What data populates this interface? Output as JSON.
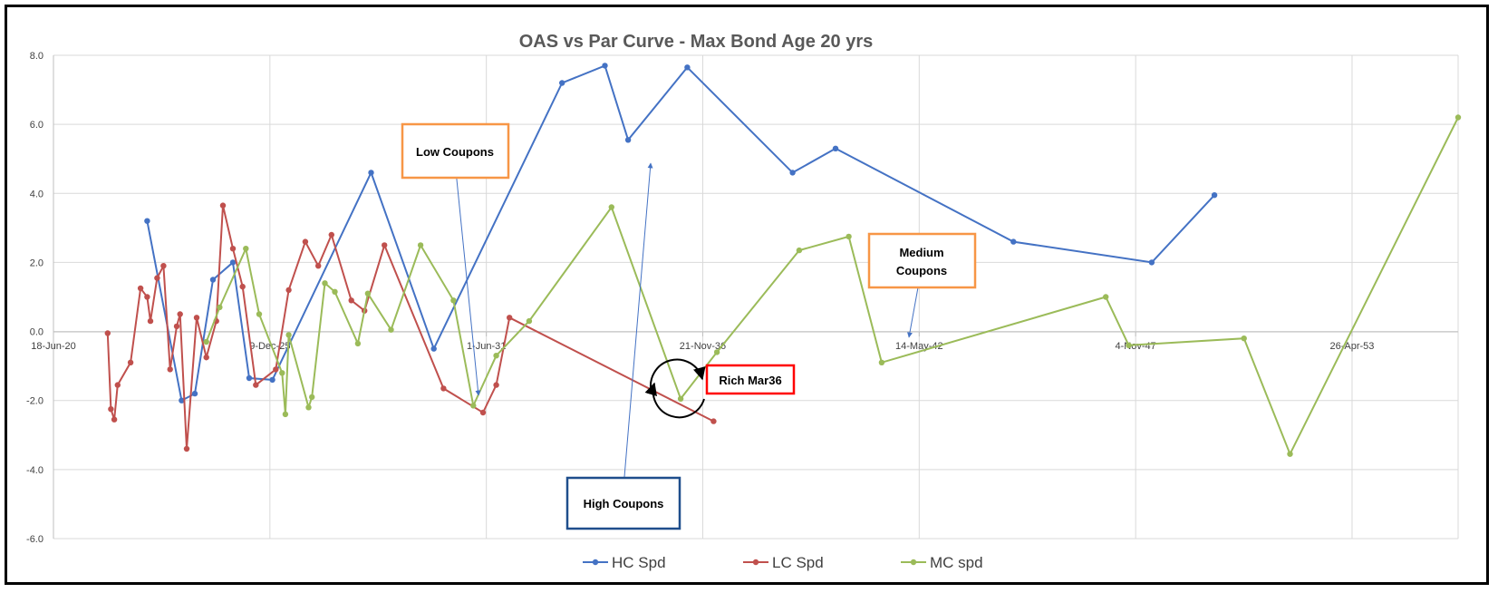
{
  "chart_data": {
    "type": "line",
    "title": "OAS vs Par Curve - Max Bond Age 20 yrs",
    "xlabel": "",
    "ylabel": "",
    "x_axis": {
      "type": "date",
      "ticks": [
        "18-Jun-20",
        "9-Dec-25",
        "1-Jun-31",
        "21-Nov-36",
        "14-May-42",
        "4-Nov-47",
        "26-Apr-53"
      ],
      "range": [
        "2020-06-18",
        "2056-01-01"
      ]
    },
    "y_axis": {
      "ticks": [
        "8.0",
        "6.0",
        "4.0",
        "2.0",
        "0.0",
        "-2.0",
        "-4.0",
        "-6.0"
      ],
      "ylim": [
        -6,
        8
      ]
    },
    "grid": true,
    "legend_position": "bottom",
    "series": [
      {
        "name": "HC Spd",
        "color": "#4472C4",
        "points": [
          [
            "2022-11-01",
            3.2
          ],
          [
            "2023-09-15",
            -2.0
          ],
          [
            "2024-01-15",
            -1.8
          ],
          [
            "2024-07-01",
            1.5
          ],
          [
            "2025-01-01",
            2.0
          ],
          [
            "2025-06-01",
            -1.35
          ],
          [
            "2026-01-01",
            -1.4
          ],
          [
            "2028-07-01",
            4.6
          ],
          [
            "2030-02-01",
            -0.5
          ],
          [
            "2033-05-01",
            7.2
          ],
          [
            "2034-06-01",
            7.7
          ],
          [
            "2035-01-01",
            5.55
          ],
          [
            "2036-07-01",
            7.65
          ],
          [
            "2039-03-01",
            4.6
          ],
          [
            "2040-04-01",
            5.3
          ],
          [
            "2044-10-01",
            2.6
          ],
          [
            "2048-04-01",
            2.0
          ],
          [
            "2049-11-01",
            3.95
          ]
        ]
      },
      {
        "name": "LC Spd",
        "color": "#C0504D",
        "points": [
          [
            "2021-11-01",
            -0.05
          ],
          [
            "2021-12-01",
            -2.25
          ],
          [
            "2022-01-01",
            -2.55
          ],
          [
            "2022-02-01",
            -1.55
          ],
          [
            "2022-06-01",
            -0.9
          ],
          [
            "2022-09-01",
            1.25
          ],
          [
            "2022-11-01",
            1.0
          ],
          [
            "2022-12-01",
            0.3
          ],
          [
            "2023-02-01",
            1.55
          ],
          [
            "2023-04-01",
            1.9
          ],
          [
            "2023-06-01",
            -1.1
          ],
          [
            "2023-08-01",
            0.15
          ],
          [
            "2023-09-01",
            0.5
          ],
          [
            "2023-11-01",
            -3.4
          ],
          [
            "2024-02-01",
            0.4
          ],
          [
            "2024-05-01",
            -0.75
          ],
          [
            "2024-08-01",
            0.3
          ],
          [
            "2024-10-01",
            3.65
          ],
          [
            "2025-01-01",
            2.4
          ],
          [
            "2025-04-01",
            1.3
          ],
          [
            "2025-08-01",
            -1.55
          ],
          [
            "2026-02-01",
            -1.1
          ],
          [
            "2026-06-01",
            1.2
          ],
          [
            "2026-11-01",
            2.6
          ],
          [
            "2027-03-01",
            1.9
          ],
          [
            "2027-07-01",
            2.8
          ],
          [
            "2028-01-01",
            0.9
          ],
          [
            "2028-05-01",
            0.6
          ],
          [
            "2028-11-01",
            2.5
          ],
          [
            "2030-05-01",
            -1.65
          ],
          [
            "2031-05-01",
            -2.35
          ],
          [
            "2031-09-01",
            -1.55
          ],
          [
            "2032-01-01",
            0.4
          ],
          [
            "2037-03-01",
            -2.6
          ]
        ]
      },
      {
        "name": "MC spd",
        "color": "#9BBB59",
        "points": [
          [
            "2024-05-01",
            -0.3
          ],
          [
            "2024-09-01",
            0.7
          ],
          [
            "2025-05-01",
            2.4
          ],
          [
            "2025-09-01",
            0.5
          ],
          [
            "2026-04-01",
            -1.2
          ],
          [
            "2026-05-01",
            -2.4
          ],
          [
            "2026-06-01",
            -0.1
          ],
          [
            "2026-12-01",
            -2.2
          ],
          [
            "2027-01-01",
            -1.9
          ],
          [
            "2027-05-01",
            1.4
          ],
          [
            "2027-08-01",
            1.15
          ],
          [
            "2028-03-01",
            -0.35
          ],
          [
            "2028-06-01",
            1.1
          ],
          [
            "2029-01-01",
            0.05
          ],
          [
            "2029-10-01",
            2.5
          ],
          [
            "2030-08-01",
            0.9
          ],
          [
            "2031-02-01",
            -2.15
          ],
          [
            "2031-09-01",
            -0.7
          ],
          [
            "2032-07-01",
            0.3
          ],
          [
            "2034-08-01",
            3.6
          ],
          [
            "2036-05-01",
            -1.95
          ],
          [
            "2037-04-01",
            -0.6
          ],
          [
            "2039-05-01",
            2.35
          ],
          [
            "2040-08-01",
            2.75
          ],
          [
            "2041-06-01",
            -0.9
          ],
          [
            "2047-02-01",
            1.0
          ],
          [
            "2047-09-01",
            -0.4
          ],
          [
            "2050-08-01",
            -0.2
          ],
          [
            "2051-10-01",
            -3.55
          ],
          [
            "2056-01-01",
            6.2
          ]
        ]
      }
    ],
    "annotations": [
      {
        "text": "Low Coupons",
        "border_color": "#F79646"
      },
      {
        "text": "High Coupons",
        "border_color": "#1F4E8C"
      },
      {
        "text": "Medium Coupons",
        "border_color": "#F79646"
      },
      {
        "text": "Rich Mar36",
        "border_color": "#FF0000"
      }
    ]
  }
}
